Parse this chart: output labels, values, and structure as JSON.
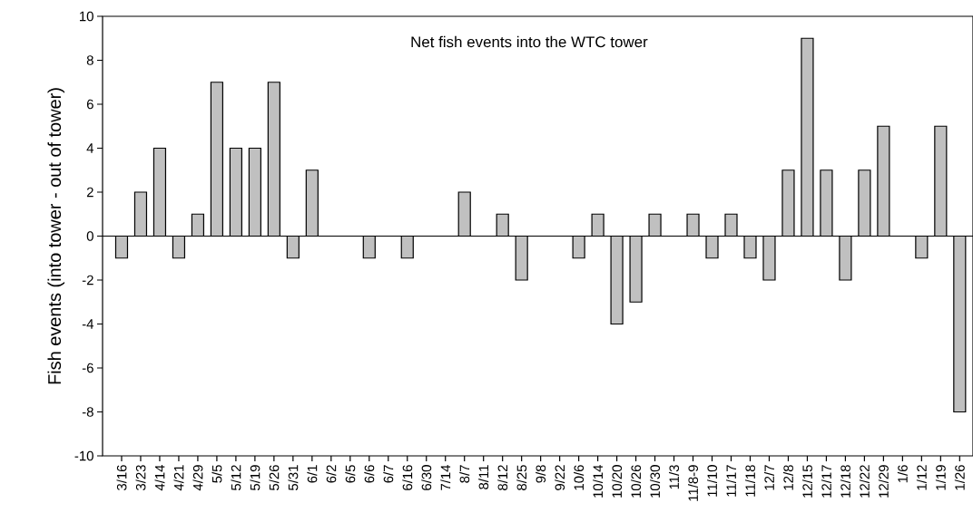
{
  "chart_data": {
    "type": "bar",
    "title": "Net fish events into the WTC tower",
    "ylabel": "Fish events (into tower - out of tower)",
    "categories": [
      "3/16",
      "3/23",
      "4/14",
      "4/21",
      "4/29",
      "5/5",
      "5/12",
      "5/19",
      "5/26",
      "5/31",
      "6/1",
      "6/2",
      "6/5",
      "6/6",
      "6/7",
      "6/16",
      "6/30",
      "7/14",
      "8/7",
      "8/11",
      "8/12",
      "8/25",
      "9/8",
      "9/22",
      "10/6",
      "10/14",
      "10/20",
      "10/26",
      "10/30",
      "11/3",
      "11/8-9",
      "11/10",
      "11/17",
      "11/18",
      "12/7",
      "12/8",
      "12/15",
      "12/17",
      "12/18",
      "12/22",
      "12/29",
      "1/6",
      "1/12",
      "1/19",
      "1/26"
    ],
    "values": [
      -1,
      2,
      4,
      -1,
      1,
      7,
      4,
      4,
      7,
      -1,
      3,
      0,
      0,
      -1,
      0,
      -1,
      0,
      0,
      2,
      0,
      1,
      -2,
      0,
      0,
      -1,
      1,
      -4,
      -3,
      1,
      0,
      1,
      -1,
      1,
      -1,
      -2,
      3,
      9,
      3,
      -2,
      3,
      5,
      0,
      -1,
      5,
      -8
    ],
    "color": "#c0c0c0",
    "ylim": [
      -10,
      10
    ],
    "yticks": [
      -10,
      -8,
      -6,
      -4,
      -2,
      0,
      2,
      4,
      6,
      8,
      10
    ],
    "ref_lines": [
      {
        "axis": "y",
        "value": 0
      }
    ]
  }
}
